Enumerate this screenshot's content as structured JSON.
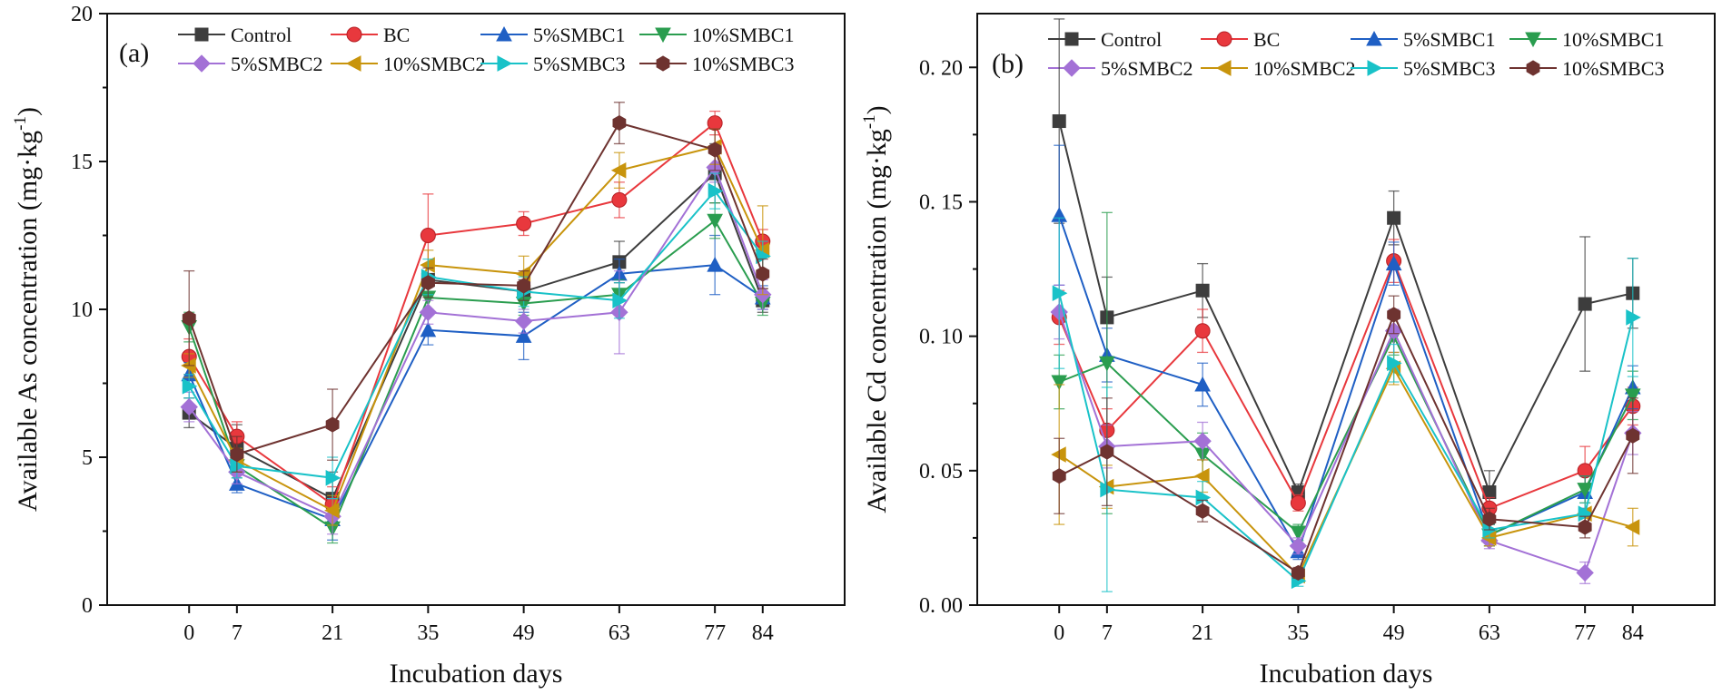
{
  "chart_data": [
    {
      "type": "line",
      "panel_label": "(a)",
      "xlabel": "Incubation days",
      "ylabel": "Available As concentration (mg·kg",
      "ylabel_sup": "-1",
      "ylabel_end": ")",
      "x": [
        0,
        7,
        21,
        35,
        49,
        63,
        77,
        84
      ],
      "x_ticks": [
        "0",
        "7",
        "21",
        "35",
        "49",
        "63",
        "77",
        "84"
      ],
      "xlim": [
        -12,
        96
      ],
      "ylim": [
        0,
        20
      ],
      "y_ticks": [
        "0",
        "5",
        "10",
        "15",
        "20"
      ],
      "y_tick_values": [
        0,
        5,
        10,
        15,
        20
      ],
      "legend_position": "top",
      "series": [
        {
          "name": "Control",
          "marker": "square",
          "color": "#3d3d3d",
          "values": [
            6.5,
            5.3,
            3.6,
            11.0,
            10.6,
            11.6,
            14.6,
            10.3
          ],
          "errors": [
            0.5,
            0.8,
            0.9,
            0.5,
            0.4,
            0.7,
            1.0,
            0.4
          ]
        },
        {
          "name": "BC",
          "marker": "circle",
          "color": "#e8383d",
          "values": [
            8.4,
            5.7,
            3.4,
            12.5,
            12.9,
            13.7,
            16.3,
            12.3
          ],
          "errors": [
            0.6,
            0.5,
            0.6,
            1.4,
            0.4,
            0.6,
            0.4,
            0.4
          ]
        },
        {
          "name": "5%SMBC1",
          "marker": "triangle-up",
          "color": "#1f5fc4",
          "values": [
            7.8,
            4.1,
            2.9,
            9.3,
            9.1,
            11.2,
            11.5,
            10.4
          ],
          "errors": [
            0.4,
            0.3,
            0.7,
            0.5,
            0.8,
            0.5,
            1.0,
            0.4
          ]
        },
        {
          "name": "10%SMBC1",
          "marker": "triangle-down",
          "color": "#2a9d4f",
          "values": [
            9.4,
            4.7,
            2.6,
            10.4,
            10.2,
            10.5,
            13.0,
            10.2
          ],
          "errors": [
            0.5,
            0.4,
            0.5,
            0.4,
            0.4,
            0.5,
            0.6,
            0.4
          ]
        },
        {
          "name": "5%SMBC2",
          "marker": "diamond",
          "color": "#a371d6",
          "values": [
            6.7,
            4.5,
            3.0,
            9.9,
            9.6,
            9.9,
            14.8,
            10.5
          ],
          "errors": [
            0.5,
            0.4,
            0.6,
            0.4,
            0.4,
            1.4,
            0.5,
            0.5
          ]
        },
        {
          "name": "10%SMBC2",
          "marker": "triangle-left",
          "color": "#c8940c",
          "values": [
            8.1,
            4.9,
            3.2,
            11.5,
            11.2,
            14.7,
            15.5,
            12.0
          ],
          "errors": [
            0.4,
            0.4,
            0.5,
            0.5,
            0.6,
            0.6,
            0.6,
            1.5
          ]
        },
        {
          "name": "5%SMBC3",
          "marker": "triangle-right",
          "color": "#19c2c8",
          "values": [
            7.4,
            4.7,
            4.3,
            11.1,
            10.6,
            10.3,
            14.0,
            11.8
          ],
          "errors": [
            0.4,
            0.4,
            0.7,
            0.6,
            0.5,
            0.6,
            0.6,
            0.5
          ]
        },
        {
          "name": "10%SMBC3",
          "marker": "hexagon",
          "color": "#6e3330",
          "values": [
            9.7,
            5.1,
            6.1,
            10.9,
            10.8,
            16.3,
            15.4,
            11.2
          ],
          "errors": [
            1.6,
            0.6,
            1.2,
            0.5,
            0.5,
            0.7,
            0.7,
            0.5
          ]
        }
      ],
      "legend_rows": [
        [
          "Control",
          "BC",
          "5%SMBC1",
          "10%SMBC1"
        ],
        [
          "5%SMBC2",
          "10%SMBC2",
          "5%SMBC3",
          "10%SMBC3"
        ]
      ]
    },
    {
      "type": "line",
      "panel_label": "(b)",
      "xlabel": "Incubation days",
      "ylabel": "Available Cd concentration (mg·kg",
      "ylabel_sup": "-1",
      "ylabel_end": ")",
      "x": [
        0,
        7,
        21,
        35,
        49,
        63,
        77,
        84
      ],
      "x_ticks": [
        "0",
        "7",
        "21",
        "35",
        "49",
        "63",
        "77",
        "84"
      ],
      "xlim": [
        -12,
        96
      ],
      "ylim": [
        0,
        0.22
      ],
      "y_ticks": [
        "0. 00",
        "0. 05",
        "0. 10",
        "0. 15",
        "0. 20"
      ],
      "y_tick_values": [
        0,
        0.05,
        0.1,
        0.15,
        0.2
      ],
      "legend_position": "top",
      "series": [
        {
          "name": "Control",
          "marker": "square",
          "color": "#3d3d3d",
          "values": [
            0.18,
            0.107,
            0.117,
            0.042,
            0.144,
            0.042,
            0.112,
            0.116
          ],
          "errors": [
            0.038,
            0.015,
            0.01,
            0.003,
            0.01,
            0.008,
            0.025,
            0.013
          ]
        },
        {
          "name": "BC",
          "marker": "circle",
          "color": "#e8383d",
          "values": [
            0.107,
            0.065,
            0.102,
            0.038,
            0.128,
            0.036,
            0.05,
            0.074
          ],
          "errors": [
            0.01,
            0.008,
            0.008,
            0.003,
            0.008,
            0.004,
            0.009,
            0.007
          ]
        },
        {
          "name": "5%SMBC1",
          "marker": "triangle-up",
          "color": "#1f5fc4",
          "values": [
            0.145,
            0.093,
            0.082,
            0.02,
            0.127,
            0.026,
            0.042,
            0.081
          ],
          "errors": [
            0.026,
            0.01,
            0.008,
            0.003,
            0.008,
            0.004,
            0.006,
            0.008
          ]
        },
        {
          "name": "10%SMBC1",
          "marker": "triangle-down",
          "color": "#2a9d4f",
          "values": [
            0.083,
            0.09,
            0.056,
            0.027,
            0.1,
            0.026,
            0.043,
            0.078
          ],
          "errors": [
            0.01,
            0.056,
            0.008,
            0.003,
            0.007,
            0.004,
            0.005,
            0.009
          ]
        },
        {
          "name": "5%SMBC2",
          "marker": "diamond",
          "color": "#a371d6",
          "values": [
            0.109,
            0.059,
            0.061,
            0.022,
            0.102,
            0.024,
            0.012,
            0.064
          ],
          "errors": [
            0.01,
            0.008,
            0.007,
            0.003,
            0.008,
            0.003,
            0.004,
            0.008
          ]
        },
        {
          "name": "10%SMBC2",
          "marker": "triangle-left",
          "color": "#c8940c",
          "values": [
            0.056,
            0.044,
            0.048,
            0.011,
            0.088,
            0.025,
            0.034,
            0.029
          ],
          "errors": [
            0.026,
            0.008,
            0.006,
            0.002,
            0.006,
            0.003,
            0.004,
            0.007
          ]
        },
        {
          "name": "5%SMBC3",
          "marker": "triangle-right",
          "color": "#19c2c8",
          "values": [
            0.116,
            0.043,
            0.04,
            0.009,
            0.09,
            0.028,
            0.034,
            0.107
          ],
          "errors": [
            0.028,
            0.038,
            0.006,
            0.002,
            0.007,
            0.003,
            0.004,
            0.022
          ]
        },
        {
          "name": "10%SMBC3",
          "marker": "hexagon",
          "color": "#6e3330",
          "values": [
            0.048,
            0.057,
            0.035,
            0.012,
            0.108,
            0.032,
            0.029,
            0.063
          ],
          "errors": [
            0.014,
            0.02,
            0.004,
            0.002,
            0.007,
            0.004,
            0.004,
            0.014
          ]
        }
      ],
      "legend_rows": [
        [
          "Control",
          "BC",
          "5%SMBC1",
          "10%SMBC1"
        ],
        [
          "5%SMBC2",
          "10%SMBC2",
          "5%SMBC3",
          "10%SMBC3"
        ]
      ]
    }
  ]
}
